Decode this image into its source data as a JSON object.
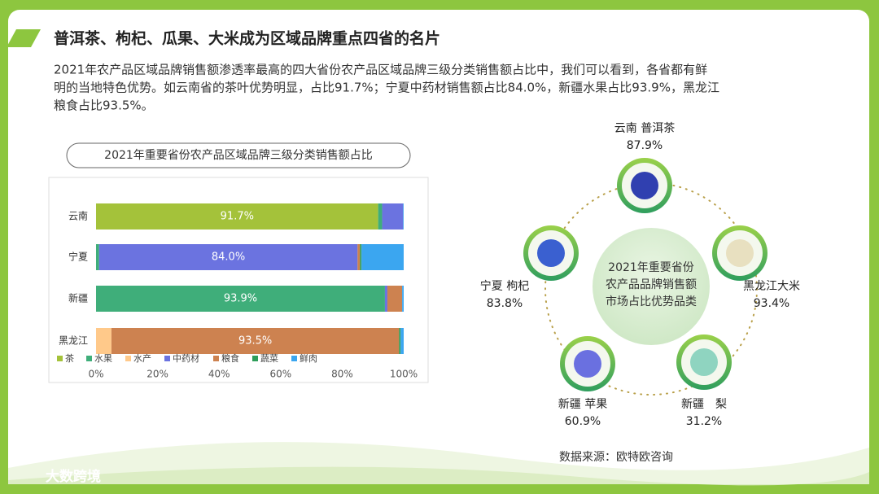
{
  "header": {
    "title": "普洱茶、枸杞、瓜果、大米成为区域品牌重点四省的名片"
  },
  "paragraph": {
    "lines": [
      "2021年农产品区域品牌销售额渗透率最高的四大省份农产品区域品牌三级分类销售额占比中，我们可以看到，各省都有鲜",
      "明的当地特色优势。如云南省的茶叶优势明显，占比91.7%；宁夏中药材销售额占比84.0%，新疆水果占比93.9%，黑龙江",
      "粮食占比93.5%。"
    ]
  },
  "chart_data": {
    "type": "stacked_bar_horizontal",
    "title": "2021年重要省份农产品区域品牌三级分类销售额占比",
    "categories": [
      "云南",
      "宁夏",
      "新疆",
      "黑龙江"
    ],
    "series": [
      {
        "name": "茶",
        "color": "#a4c23a",
        "values": [
          91.7,
          0,
          0,
          0
        ],
        "value_labels": [
          "91.7%",
          null,
          null,
          null
        ]
      },
      {
        "name": "水果",
        "color": "#3fae7a",
        "values": [
          1.3,
          1.0,
          93.9,
          0
        ],
        "value_labels": [
          null,
          null,
          "93.9%",
          null
        ]
      },
      {
        "name": "水产",
        "color": "#ffc98a",
        "values": [
          0,
          0,
          0,
          5.0
        ]
      },
      {
        "name": "中药材",
        "color": "#6b73e0",
        "values": [
          6.8,
          84.0,
          0.8,
          0
        ],
        "value_labels": [
          null,
          "84.0%",
          null,
          null
        ]
      },
      {
        "name": "粮食",
        "color": "#cd8250",
        "values": [
          0,
          0.8,
          4.8,
          93.5
        ],
        "value_labels": [
          null,
          null,
          null,
          "93.5%"
        ]
      },
      {
        "name": "蔬菜",
        "color": "#2e9e5a",
        "values": [
          0,
          0.5,
          0,
          0.5
        ]
      },
      {
        "name": "鲜肉",
        "color": "#3ba6f0",
        "values": [
          0.2,
          13.7,
          0.5,
          1.0
        ]
      }
    ],
    "xlim": [
      0,
      100
    ],
    "xticks": [
      {
        "value": 0,
        "label": "0%"
      },
      {
        "value": 20,
        "label": "20%"
      },
      {
        "value": 40,
        "label": "40%"
      },
      {
        "value": 60,
        "label": "60%"
      },
      {
        "value": 80,
        "label": "80%"
      },
      {
        "value": 100,
        "label": "100%"
      }
    ],
    "legend": "bottom-left"
  },
  "diagram": {
    "center": [
      "2021年重要省份",
      "农产品品牌销售额",
      "市场占比优势品类"
    ],
    "nodes": [
      {
        "label": "云南 普洱茶",
        "value": "87.9%"
      },
      {
        "label": "黑龙江大米",
        "value": "93.4%"
      },
      {
        "label": "新疆　梨",
        "value": "31.2%"
      },
      {
        "label": "新疆 苹果",
        "value": "60.9%"
      },
      {
        "label": "宁夏 枸杞",
        "value": "83.8%"
      }
    ]
  },
  "footer": {
    "source": "数据来源：欧特欧咨询",
    "logo": "大数跨境"
  }
}
